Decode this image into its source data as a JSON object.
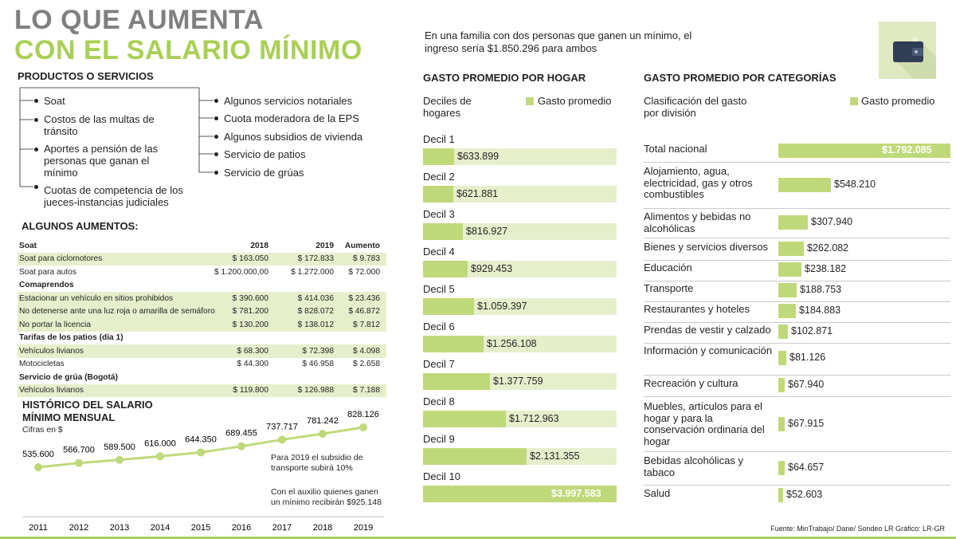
{
  "title": {
    "line1": "LO QUE AUMENTA",
    "line2": "CON EL SALARIO MÍNIMO"
  },
  "intro": "En una familia con dos personas que ganen un mínimo, el ingreso sería $1.850.296 para ambos",
  "productos": {
    "heading": "PRODUCTOS O SERVICIOS",
    "left": [
      "Soat",
      "Costos de las multas de tránsito",
      "Aportes a pensión de las personas que ganan el mínimo",
      "Cuotas de competencia de los jueces-instancias judiciales"
    ],
    "right": [
      "Algunos servicios notariales",
      "Cuota moderadora de la EPS",
      "Algunos subsidios de vivienda",
      "Servicio de patios",
      "Servicio de grúas"
    ]
  },
  "aumentos": {
    "heading": "ALGUNOS AUMENTOS:",
    "header": [
      "Soat",
      "2018",
      "2019",
      "Aumento"
    ],
    "rows": [
      {
        "c": [
          "Soat para ciclomotores",
          "$ 163.050",
          "$ 172.833",
          "$ 9.783"
        ],
        "shade": true,
        "bold": false
      },
      {
        "c": [
          "Soat para autos",
          "$ 1.200.000,00",
          "$ 1.272.000",
          "$ 72.000"
        ],
        "shade": false,
        "bold": false
      },
      {
        "c": [
          "Comaprendos",
          "",
          "",
          ""
        ],
        "shade": false,
        "bold": true
      },
      {
        "c": [
          "Estacionar un vehículo en sitios prohibidos",
          "$ 390.600",
          "$ 414.036",
          "$ 23.436"
        ],
        "shade": true,
        "bold": false
      },
      {
        "c": [
          "No detenerse ante una luz roja o amarilla de semáforo",
          "$ 781.200",
          "$ 828.072",
          "$ 46.872"
        ],
        "shade": true,
        "bold": false
      },
      {
        "c": [
          "No portar la licencia",
          "$ 130.200",
          "$ 138.012",
          "$ 7.812"
        ],
        "shade": true,
        "bold": false
      },
      {
        "c": [
          "Tarifas de los patios (día 1)",
          "",
          "",
          ""
        ],
        "shade": false,
        "bold": true
      },
      {
        "c": [
          "Vehículos livianos",
          "$ 68.300",
          "$ 72.398",
          "$ 4.098"
        ],
        "shade": true,
        "bold": false
      },
      {
        "c": [
          "Motocicletas",
          "$ 44.300",
          "$ 46.958",
          "$ 2.658"
        ],
        "shade": false,
        "bold": false
      },
      {
        "c": [
          "Servicio de grúa (Bogotá)",
          "",
          "",
          ""
        ],
        "shade": false,
        "bold": true
      },
      {
        "c": [
          "Vehículos livianos",
          "$ 119.800",
          "$ 126.988",
          "$ 7.188"
        ],
        "shade": true,
        "bold": false
      }
    ]
  },
  "historico": {
    "heading1": "HISTÓRICO DEL SALARIO",
    "heading2": "MÍNIMO MENSUAL",
    "units": "Cifras en $",
    "note1": "Para 2019 el subsidio de transporte subirá 10%",
    "note2": "Con el auxilio quienes ganen un mínimo recibirán $925.148"
  },
  "hogar": {
    "heading": "GASTO PROMEDIO POR HOGAR",
    "subhead": "Deciles de hogares",
    "legend": "Gasto promedio"
  },
  "categorias": {
    "heading": "GASTO PROMEDIO POR CATEGORÍAS",
    "subhead": "Clasificación del gasto por división",
    "legend": "Gasto promedio"
  },
  "footer": "Fuente: MinTrabajo/ Dane/ Sondeo LR     Gráfico: LR-GR",
  "colors": {
    "accent": "#a9cf56",
    "bar": "#bfd97a",
    "barBg": "#e6efcc",
    "title": "#7f7f7f"
  },
  "chart_data": [
    {
      "type": "line",
      "title": "HISTÓRICO DEL SALARIO MÍNIMO MENSUAL",
      "x": [
        "2011",
        "2012",
        "2013",
        "2014",
        "2015",
        "2016",
        "2017",
        "2018",
        "2019"
      ],
      "values": [
        535600,
        566700,
        589500,
        616000,
        644350,
        689455,
        737717,
        781242,
        828126
      ],
      "labels": [
        "535.600",
        "566.700",
        "589.500",
        "616.000",
        "644.350",
        "689.455",
        "737.717",
        "781.242",
        "828.126"
      ]
    },
    {
      "type": "bar",
      "title": "GASTO PROMEDIO POR HOGAR",
      "categories": [
        "Decil 1",
        "Decil 2",
        "Decil 3",
        "Decil 4",
        "Decil 5",
        "Decil 6",
        "Decil 7",
        "Decil 8",
        "Decil 9",
        "Decil 10"
      ],
      "values": [
        633899,
        621881,
        816927,
        929453,
        1059397,
        1256108,
        1377759,
        1712963,
        2131355,
        3997583
      ],
      "labels": [
        "$633.899",
        "$621.881",
        "$816.927",
        "$929.453",
        "$1.059.397",
        "$1.256.108",
        "$1.377.759",
        "$1.712.963",
        "$2.131.355",
        "$3.997.583"
      ],
      "series": [
        {
          "name": "Gasto promedio",
          "values": [
            633899,
            621881,
            816927,
            929453,
            1059397,
            1256108,
            1377759,
            1712963,
            2131355,
            3997583
          ]
        }
      ]
    },
    {
      "type": "bar",
      "title": "GASTO PROMEDIO POR CATEGORÍAS",
      "categories": [
        "Total nacional",
        "Alojamiento, agua, electricidad, gas y otros combustibles",
        "Alimentos y bebidas no alcohólicas",
        "Bienes y servicios diversos",
        "Educación",
        "Transporte",
        "Restaurantes y hoteles",
        "Prendas de vestir y calzado",
        "Información y comunicación",
        "Recreación y cultura",
        "Muebles, artículos para el hogar y para la conservación ordinaria del hogar",
        "Bebidas alcohólicas y tabaco",
        "Salud"
      ],
      "values": [
        1792085,
        548210,
        307940,
        262082,
        238182,
        188753,
        184883,
        102871,
        81126,
        67940,
        67915,
        64657,
        52603
      ],
      "labels": [
        "$1.792.085",
        "$548.210",
        "$307.940",
        "$262.082",
        "$238.182",
        "$188.753",
        "$184.883",
        "$102.871",
        "$81.126",
        "$67.940",
        "$67.915",
        "$64.657",
        "$52.603"
      ],
      "series": [
        {
          "name": "Gasto promedio",
          "values": [
            1792085,
            548210,
            307940,
            262082,
            238182,
            188753,
            184883,
            102871,
            81126,
            67940,
            67915,
            64657,
            52603
          ]
        }
      ]
    }
  ]
}
